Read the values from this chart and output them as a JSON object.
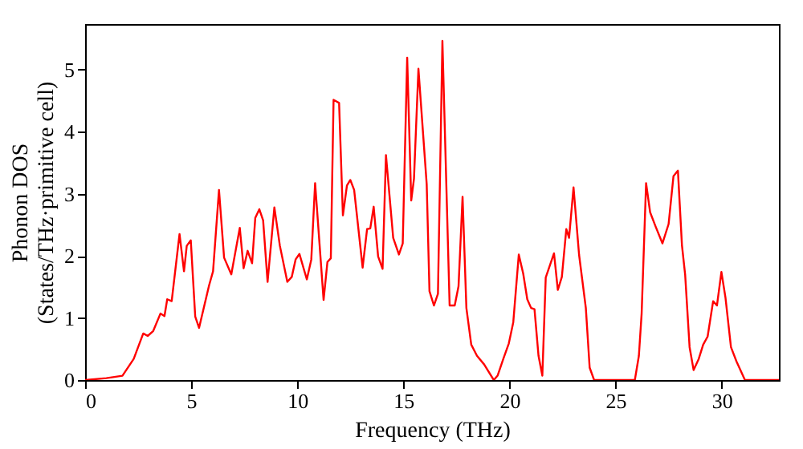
{
  "chart_data": {
    "type": "line",
    "xlabel": "Frequency (THz)",
    "ylabel": "Phonon DOS\n(States/THz·primitive cell)",
    "xlim": [
      0,
      32.7
    ],
    "ylim": [
      0,
      5.73
    ],
    "xticks": [
      0,
      5,
      10,
      15,
      20,
      25,
      30
    ],
    "yticks": [
      0,
      1,
      2,
      3,
      4,
      5
    ],
    "grid": false,
    "marker": "none",
    "line_style": "solid",
    "series": [
      {
        "color": "#ff0000",
        "x": [
          0,
          1.0,
          1.76,
          2.29,
          2.74,
          2.95,
          3.21,
          3.55,
          3.74,
          3.87,
          4.08,
          4.45,
          4.66,
          4.79,
          4.98,
          5.19,
          5.37,
          5.84,
          6.03,
          6.31,
          6.55,
          6.89,
          7.29,
          7.47,
          7.66,
          7.87,
          8.02,
          8.21,
          8.39,
          8.6,
          8.92,
          9.18,
          9.53,
          9.74,
          9.92,
          10.1,
          10.45,
          10.66,
          10.84,
          11.24,
          11.42,
          11.58,
          11.71,
          11.97,
          12.15,
          12.34,
          12.5,
          12.68,
          13.08,
          13.29,
          13.44,
          13.6,
          13.81,
          14.02,
          14.18,
          14.52,
          14.79,
          14.97,
          15.18,
          15.37,
          15.5,
          15.71,
          16.1,
          16.23,
          16.44,
          16.63,
          16.84,
          17.18,
          17.42,
          17.6,
          17.79,
          17.97,
          18.2,
          18.47,
          18.81,
          19.26,
          19.44,
          19.71,
          19.97,
          20.18,
          20.44,
          20.65,
          20.84,
          21.02,
          21.18,
          21.37,
          21.55,
          21.71,
          22.1,
          22.28,
          22.47,
          22.68,
          22.81,
          23.02,
          23.28,
          23.6,
          23.78,
          23.99,
          25.91,
          26.1,
          26.23,
          26.44,
          26.63,
          26.89,
          27.21,
          27.5,
          27.73,
          27.94,
          28.13,
          28.28,
          28.49,
          28.68,
          28.92,
          29.13,
          29.34,
          29.6,
          29.78,
          29.99,
          30.18,
          30.44,
          30.7,
          31.1,
          32.7
        ],
        "values": [
          0,
          0.03,
          0.07,
          0.34,
          0.75,
          0.71,
          0.79,
          1.07,
          1.03,
          1.3,
          1.27,
          2.35,
          1.75,
          2.16,
          2.25,
          1.02,
          0.84,
          1.52,
          1.75,
          3.06,
          1.97,
          1.7,
          2.45,
          1.8,
          2.08,
          1.88,
          2.61,
          2.75,
          2.57,
          1.58,
          2.78,
          2.16,
          1.58,
          1.66,
          1.94,
          2.03,
          1.62,
          1.94,
          3.17,
          1.29,
          1.9,
          1.96,
          4.51,
          4.46,
          2.65,
          3.13,
          3.22,
          3.06,
          1.81,
          2.43,
          2.44,
          2.79,
          1.99,
          1.79,
          3.62,
          2.29,
          2.02,
          2.2,
          5.19,
          2.89,
          3.24,
          5.01,
          3.15,
          1.43,
          1.2,
          1.39,
          5.46,
          1.2,
          1.2,
          1.51,
          2.95,
          1.16,
          0.57,
          0.39,
          0.25,
          0,
          0.07,
          0.34,
          0.59,
          0.93,
          2.02,
          1.71,
          1.3,
          1.16,
          1.14,
          0.39,
          0.07,
          1.65,
          2.04,
          1.45,
          1.66,
          2.43,
          2.29,
          3.1,
          2.02,
          1.16,
          0.2,
          0,
          0,
          0.39,
          1.07,
          3.17,
          2.7,
          2.47,
          2.2,
          2.51,
          3.28,
          3.37,
          2.17,
          1.7,
          0.53,
          0.16,
          0.34,
          0.57,
          0.7,
          1.27,
          1.2,
          1.74,
          1.33,
          0.53,
          0.3,
          0,
          0
        ]
      }
    ]
  }
}
